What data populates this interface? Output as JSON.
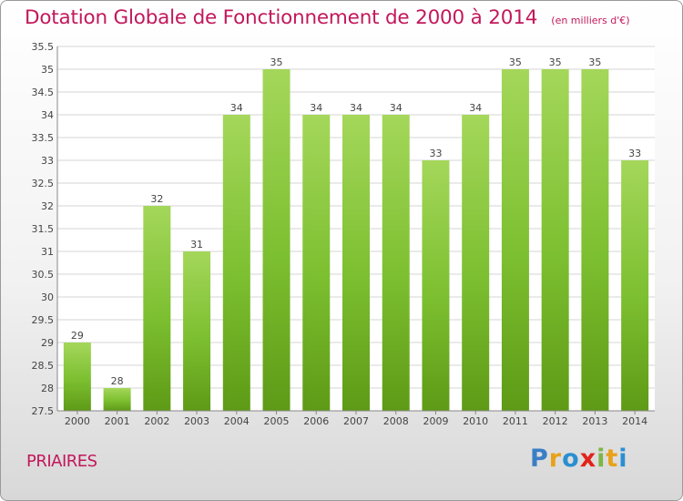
{
  "chart_data": {
    "type": "bar",
    "title": "Dotation Globale de Fonctionnement de 2000 à 2014",
    "subtitle": "(en milliers d'€)",
    "categories": [
      "2000",
      "2001",
      "2002",
      "2003",
      "2004",
      "2005",
      "2006",
      "2007",
      "2008",
      "2009",
      "2010",
      "2011",
      "2012",
      "2013",
      "2014"
    ],
    "values": [
      29,
      28,
      32,
      31,
      34,
      35,
      34,
      34,
      34,
      33,
      34,
      35,
      35,
      35,
      33
    ],
    "ylim": [
      27.5,
      35.5
    ],
    "yticks": [
      "27.5",
      "28",
      "28.5",
      "29",
      "29.5",
      "30",
      "30.5",
      "31",
      "31.5",
      "32",
      "32.5",
      "33",
      "33.5",
      "34",
      "34.5",
      "35",
      "35.5"
    ],
    "grid": true,
    "bar_color": "#7cbf30",
    "bar_color_light": "#a4d75a",
    "bar_color_dark": "#5e9a16"
  },
  "commune": "PRIAIRES",
  "logo": {
    "text": "Proxiti"
  },
  "colors": {
    "title": "#c2185b",
    "grid": "#d6d6d6",
    "axis_text": "#444444"
  }
}
